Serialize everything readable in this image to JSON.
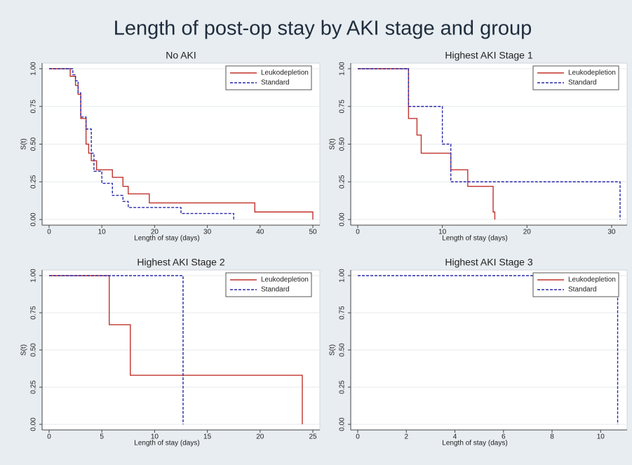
{
  "title": "Length of post-op stay by AKI stage and group",
  "chart_data": [
    {
      "type": "step",
      "title": "No AKI",
      "xlabel": "Length of stay (days)",
      "ylabel": "S(t)",
      "xlim": [
        0,
        50
      ],
      "xticks": [
        0,
        10,
        20,
        30,
        40,
        50
      ],
      "ylim": [
        0,
        1
      ],
      "yticks": [
        {
          "value": 0,
          "label": "0.00"
        },
        {
          "value": 0.25,
          "label": "0.25"
        },
        {
          "value": 0.5,
          "label": "0.50"
        },
        {
          "value": 0.75,
          "label": "0.75"
        },
        {
          "value": 1,
          "label": "1.00"
        }
      ],
      "grid": true,
      "legend": "top-right",
      "series": [
        {
          "name": "Leukodepletion",
          "color": "#c0322c",
          "dash": false,
          "x": [
            0,
            4,
            5,
            5.5,
            6,
            7,
            7.5,
            8,
            9,
            12,
            14,
            15,
            19,
            39,
            50
          ],
          "values": [
            1,
            0.95,
            0.89,
            0.83,
            0.67,
            0.5,
            0.44,
            0.39,
            0.33,
            0.28,
            0.22,
            0.17,
            0.11,
            0.05,
            0
          ]
        },
        {
          "name": "Standard",
          "color": "#2a2aa8",
          "dash": true,
          "x": [
            0,
            4.5,
            5,
            5.5,
            6,
            7,
            8,
            8.5,
            10,
            12,
            14,
            15,
            25,
            35
          ],
          "values": [
            1,
            0.96,
            0.92,
            0.84,
            0.68,
            0.6,
            0.44,
            0.32,
            0.24,
            0.16,
            0.12,
            0.08,
            0.04,
            0
          ]
        }
      ]
    },
    {
      "type": "step",
      "title": "Highest AKI Stage 1",
      "xlabel": "Length of stay (days)",
      "ylabel": "S(t)",
      "xlim": [
        0,
        31
      ],
      "xticks": [
        0,
        10,
        20,
        30
      ],
      "ylim": [
        0,
        1
      ],
      "yticks": [
        {
          "value": 0,
          "label": "0.00"
        },
        {
          "value": 0.25,
          "label": "0.25"
        },
        {
          "value": 0.5,
          "label": "0.50"
        },
        {
          "value": 0.75,
          "label": "0.75"
        },
        {
          "value": 1,
          "label": "1.00"
        }
      ],
      "grid": true,
      "legend": "top-right",
      "series": [
        {
          "name": "Leukodepletion",
          "color": "#c0322c",
          "dash": false,
          "x": [
            0,
            6,
            7,
            7.5,
            11,
            13,
            16,
            16.2
          ],
          "values": [
            1,
            0.67,
            0.56,
            0.44,
            0.33,
            0.22,
            0.05,
            0
          ]
        },
        {
          "name": "Standard",
          "color": "#2a2aa8",
          "dash": true,
          "x": [
            0,
            6,
            10,
            11,
            31
          ],
          "values": [
            1,
            0.75,
            0.5,
            0.25,
            0
          ]
        }
      ]
    },
    {
      "type": "step",
      "title": "Highest AKI Stage 2",
      "xlabel": "Length of stay (days)",
      "ylabel": "S(t)",
      "xlim": [
        0,
        25
      ],
      "xticks": [
        0,
        5,
        10,
        15,
        20,
        25
      ],
      "ylim": [
        0,
        1
      ],
      "yticks": [
        {
          "value": 0,
          "label": "0.00"
        },
        {
          "value": 0.25,
          "label": "0.25"
        },
        {
          "value": 0.5,
          "label": "0.50"
        },
        {
          "value": 0.75,
          "label": "0.75"
        },
        {
          "value": 1,
          "label": "1.00"
        }
      ],
      "grid": true,
      "legend": "top-right",
      "series": [
        {
          "name": "Leukodepletion",
          "color": "#c0322c",
          "dash": false,
          "x": [
            0,
            5.7,
            7.7,
            24
          ],
          "values": [
            1,
            0.67,
            0.33,
            0
          ]
        },
        {
          "name": "Standard",
          "color": "#2a2aa8",
          "dash": true,
          "x": [
            0,
            12.7
          ],
          "values": [
            1,
            0
          ]
        }
      ]
    },
    {
      "type": "step",
      "title": "Highest AKI Stage 3",
      "xlabel": "Length of stay (days)",
      "ylabel": "S(t)",
      "xlim": [
        0,
        10.8
      ],
      "xticks": [
        0,
        2,
        4,
        6,
        8,
        10
      ],
      "ylim": [
        0,
        1
      ],
      "yticks": [
        {
          "value": 0,
          "label": "0.00"
        },
        {
          "value": 0.25,
          "label": "0.25"
        },
        {
          "value": 0.5,
          "label": "0.50"
        },
        {
          "value": 0.75,
          "label": "0.75"
        },
        {
          "value": 1,
          "label": "1.00"
        }
      ],
      "grid": true,
      "legend": "top-right",
      "series": [
        {
          "name": "Leukodepletion",
          "color": "#c0322c",
          "dash": false,
          "x": [],
          "values": []
        },
        {
          "name": "Standard",
          "color": "#2a2aa8",
          "dash": true,
          "x": [
            0,
            10.7
          ],
          "values": [
            1,
            0
          ]
        }
      ]
    }
  ]
}
